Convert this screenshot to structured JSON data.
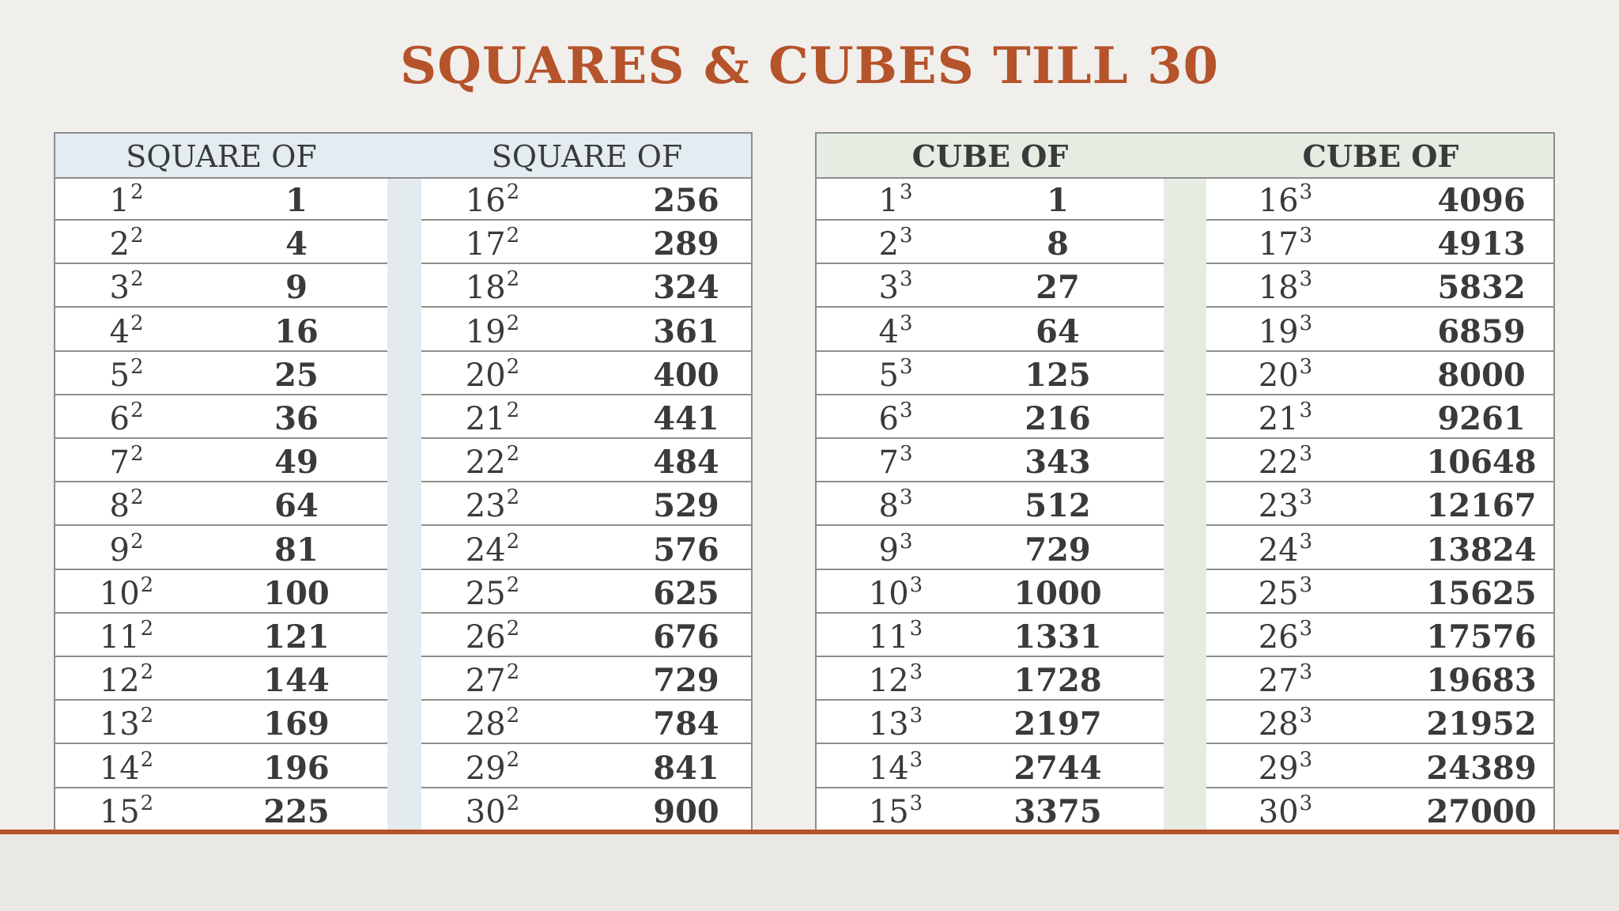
{
  "title": "SQUARES & CUBES TILL 30",
  "squares": {
    "header_left": "SQUARE OF",
    "header_right": "SQUARE OF",
    "exponent": "2",
    "left_rows": [
      {
        "base": "1",
        "value": "1"
      },
      {
        "base": "2",
        "value": "4"
      },
      {
        "base": "3",
        "value": "9"
      },
      {
        "base": "4",
        "value": "16"
      },
      {
        "base": "5",
        "value": "25"
      },
      {
        "base": "6",
        "value": "36"
      },
      {
        "base": "7",
        "value": "49"
      },
      {
        "base": "8",
        "value": "64"
      },
      {
        "base": "9",
        "value": "81"
      },
      {
        "base": "10",
        "value": "100"
      },
      {
        "base": "11",
        "value": "121"
      },
      {
        "base": "12",
        "value": "144"
      },
      {
        "base": "13",
        "value": "169"
      },
      {
        "base": "14",
        "value": "196"
      },
      {
        "base": "15",
        "value": "225"
      }
    ],
    "right_rows": [
      {
        "base": "16",
        "value": "256"
      },
      {
        "base": "17",
        "value": "289"
      },
      {
        "base": "18",
        "value": "324"
      },
      {
        "base": "19",
        "value": "361"
      },
      {
        "base": "20",
        "value": "400"
      },
      {
        "base": "21",
        "value": "441"
      },
      {
        "base": "22",
        "value": "484"
      },
      {
        "base": "23",
        "value": "529"
      },
      {
        "base": "24",
        "value": "576"
      },
      {
        "base": "25",
        "value": "625"
      },
      {
        "base": "26",
        "value": "676"
      },
      {
        "base": "27",
        "value": "729"
      },
      {
        "base": "28",
        "value": "784"
      },
      {
        "base": "29",
        "value": "841"
      },
      {
        "base": "30",
        "value": "900"
      }
    ]
  },
  "cubes": {
    "header_left": "CUBE OF",
    "header_right": "CUBE OF",
    "exponent": "3",
    "left_rows": [
      {
        "base": "1",
        "value": "1"
      },
      {
        "base": "2",
        "value": "8"
      },
      {
        "base": "3",
        "value": "27"
      },
      {
        "base": "4",
        "value": "64"
      },
      {
        "base": "5",
        "value": "125"
      },
      {
        "base": "6",
        "value": "216"
      },
      {
        "base": "7",
        "value": "343"
      },
      {
        "base": "8",
        "value": "512"
      },
      {
        "base": "9",
        "value": "729"
      },
      {
        "base": "10",
        "value": "1000"
      },
      {
        "base": "11",
        "value": "1331"
      },
      {
        "base": "12",
        "value": "1728"
      },
      {
        "base": "13",
        "value": "2197"
      },
      {
        "base": "14",
        "value": "2744"
      },
      {
        "base": "15",
        "value": "3375"
      }
    ],
    "right_rows": [
      {
        "base": "16",
        "value": "4096"
      },
      {
        "base": "17",
        "value": "4913"
      },
      {
        "base": "18",
        "value": "5832"
      },
      {
        "base": "19",
        "value": "6859"
      },
      {
        "base": "20",
        "value": "8000"
      },
      {
        "base": "21",
        "value": "9261"
      },
      {
        "base": "22",
        "value": "10648"
      },
      {
        "base": "23",
        "value": "12167"
      },
      {
        "base": "24",
        "value": "13824"
      },
      {
        "base": "25",
        "value": "15625"
      },
      {
        "base": "26",
        "value": "17576"
      },
      {
        "base": "27",
        "value": "19683"
      },
      {
        "base": "28",
        "value": "21952"
      },
      {
        "base": "29",
        "value": "24389"
      },
      {
        "base": "30",
        "value": "27000"
      }
    ]
  },
  "colors": {
    "title": "#b5532b",
    "accent_line": "#b5532b",
    "square_header_bg": "#e3ecf1",
    "cube_header_bg": "#e5ece2",
    "text": "#3a3a3a",
    "background": "#f1efec"
  }
}
